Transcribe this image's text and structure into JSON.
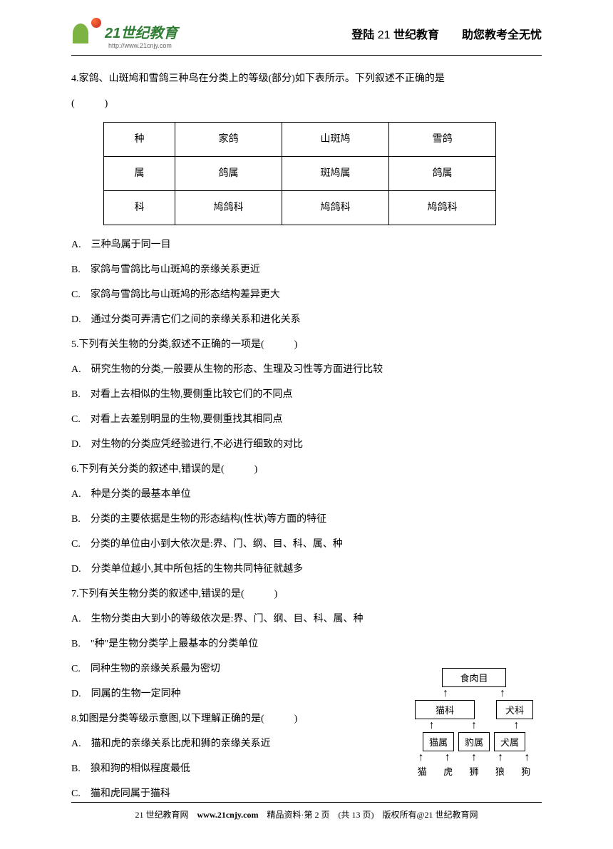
{
  "header": {
    "logo_text": "21世纪教育",
    "logo_sub": "http://www.21cnjy.com",
    "right_prefix": "登陆 ",
    "right_num": "21",
    "right_mid": " 世纪教育",
    "right_spacer": "　　",
    "right_suffix": "助您教考全无忧"
  },
  "q4": {
    "stem": "4.家鸽、山斑鸠和雪鸽三种鸟在分类上的等级(部分)如下表所示。下列叙述不正确的是",
    "bracket": "(　　　)",
    "table": {
      "headers": [
        "种",
        "家鸽",
        "山斑鸠",
        "雪鸽"
      ],
      "row1": [
        "属",
        "鸽属",
        "斑鸠属",
        "鸽属"
      ],
      "row2": [
        "科",
        "鸠鸽科",
        "鸠鸽科",
        "鸠鸽科"
      ]
    },
    "opt_a": "A.　三种鸟属于同一目",
    "opt_b": "B.　家鸽与雪鸽比与山斑鸠的亲缘关系更近",
    "opt_c": "C.　家鸽与雪鸽比与山斑鸠的形态结构差异更大",
    "opt_d": "D.　通过分类可弄清它们之间的亲缘关系和进化关系"
  },
  "q5": {
    "stem": "5.下列有关生物的分类,叙述不正确的一项是(　　　)",
    "opt_a": "A.　研究生物的分类,一般要从生物的形态、生理及习性等方面进行比较",
    "opt_b": "B.　对看上去相似的生物,要侧重比较它们的不同点",
    "opt_c": "C.　对看上去差别明显的生物,要侧重找其相同点",
    "opt_d": "D.　对生物的分类应凭经验进行,不必进行细致的对比"
  },
  "q6": {
    "stem": "6.下列有关分类的叙述中,错误的是(　　　)",
    "opt_a": "A.　种是分类的最基本单位",
    "opt_b": "B.　分类的主要依据是生物的形态结构(性状)等方面的特征",
    "opt_c": "C.　分类的单位由小到大依次是:界、门、纲、目、科、属、种",
    "opt_d": "D.　分类单位越小,其中所包括的生物共同特征就越多"
  },
  "q7": {
    "stem": "7.下列有关生物分类的叙述中,错误的是(　　　)",
    "opt_a": "A.　生物分类由大到小的等级依次是:界、门、纲、目、科、属、种",
    "opt_b": "B.　\"种\"是生物分类学上最基本的分类单位",
    "opt_c": "C.　同种生物的亲缘关系最为密切",
    "opt_d": "D.　同属的生物一定同种"
  },
  "q8": {
    "stem": "8.如图是分类等级示意图,以下理解正确的是(　　　)",
    "opt_a": "A.　猫和虎的亲缘关系比虎和狮的亲缘关系近",
    "opt_b": "B.　狼和狗的相似程度最低",
    "opt_c": "C.　猫和虎同属于猫科"
  },
  "diagram": {
    "level1": "食肉目",
    "level2": [
      "猫科",
      "犬科"
    ],
    "level3": [
      "猫属",
      "豹属",
      "犬属"
    ],
    "level4": [
      "猫",
      "虎",
      "狮",
      "狼",
      "狗"
    ]
  },
  "footer": {
    "text1": "21 世纪教育网　",
    "site": "www.21cnjy.com",
    "text2": "　精品资料·第 2 页　(共 13 页)　版权所有@21 世纪教育网"
  },
  "colors": {
    "text": "#000000",
    "background": "#ffffff",
    "logo_green": "#2e7d32",
    "border": "#000000"
  }
}
